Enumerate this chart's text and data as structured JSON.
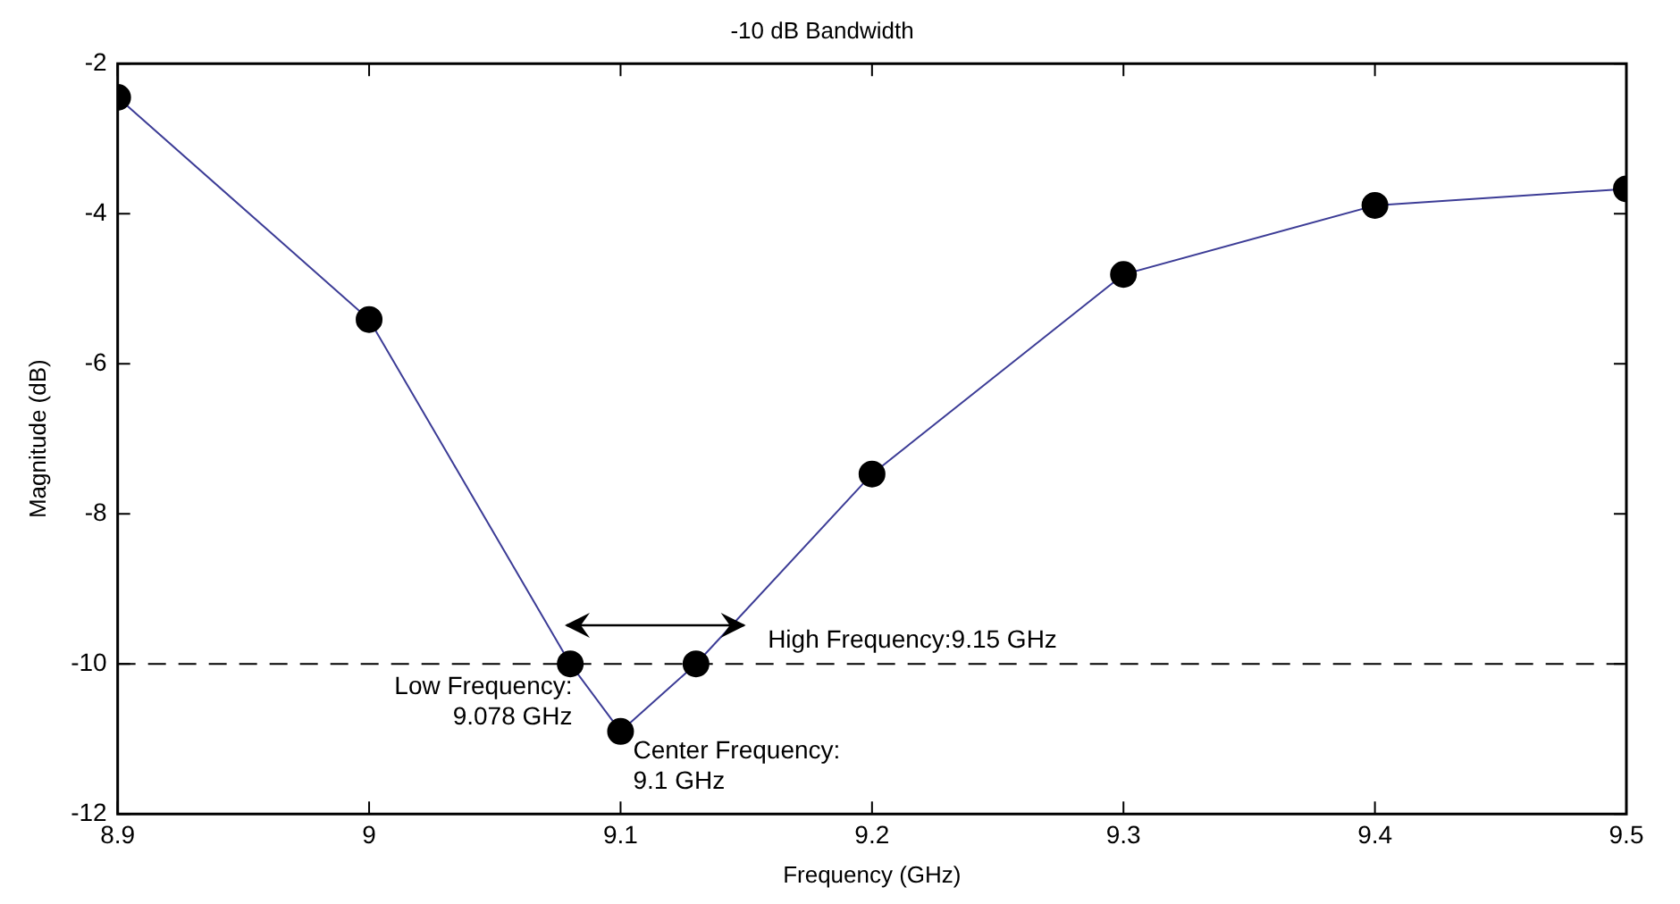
{
  "chart_data": {
    "type": "line",
    "title": "-10 dB Bandwidth",
    "xlabel": "Frequency (GHz)",
    "ylabel": "Magnitude (dB)",
    "x": [
      8.9,
      9.0,
      9.08,
      9.1,
      9.13,
      9.2,
      9.3,
      9.4,
      9.5
    ],
    "series": [
      {
        "color": "#3c3c96",
        "values": [
          -2.45,
          -5.41,
          -10.0,
          -10.9,
          -10.0,
          -7.47,
          -4.81,
          -3.89,
          -3.67
        ]
      }
    ],
    "xlim": [
      8.9,
      9.5
    ],
    "xticks": [
      8.9,
      9,
      9.1,
      9.2,
      9.3,
      9.4,
      9.5
    ],
    "ylim": [
      -12,
      -2
    ],
    "yticks": [
      -12,
      -10,
      -8,
      -6,
      -4,
      -2
    ],
    "grid": false,
    "legend": false,
    "marker": "circle",
    "line_style": "solid",
    "ref_lines": [
      {
        "axis": "y",
        "value": -10,
        "color": "#000000",
        "line_style": "dashed"
      }
    ],
    "annotations": [
      {
        "text": "Low Frequency:\n9.078 GHz",
        "x": 9.078,
        "y": -10
      },
      {
        "text": "High Frequency:9.15 GHz",
        "x": 9.15,
        "y": -10
      },
      {
        "text": "Center Frequency:\n9.1 GHz",
        "x": 9.1,
        "y": -10.9
      }
    ]
  }
}
